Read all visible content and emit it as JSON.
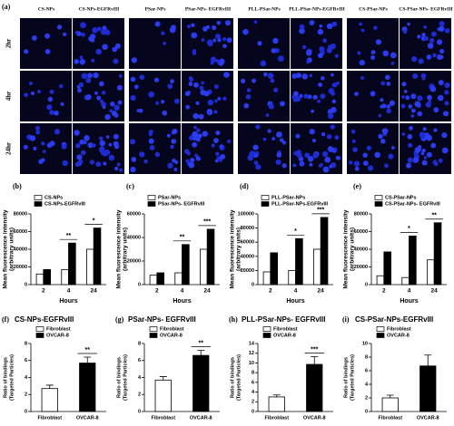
{
  "panel_a": {
    "label": "(a)",
    "columns": [
      "CS-NPs",
      "CS-NPs-EGFRvIII",
      "PSar-NPs",
      "PSar-NPs- EGFRvIII",
      "PLL-PSar-NPs",
      "PLL-PSar-NPs-EGFRvIII",
      "CS-PSar-NPs",
      "CS-PSar-NPs- EGFRvIII"
    ],
    "rows": [
      "2hr",
      "4hr",
      "24hr"
    ]
  },
  "chart_data": [
    {
      "type": "bar",
      "label": "(b)",
      "xlabel": "Hours",
      "ylabel": [
        "Mean fluorescence intensity",
        "(arbitrary units)"
      ],
      "categories": [
        "2",
        "4",
        "24"
      ],
      "series": [
        {
          "name": "CS-NPs",
          "color": "#ffffff",
          "values": [
            12000,
            17000,
            40000
          ]
        },
        {
          "name": "CS-NPs-EGFRvIII",
          "color": "#000000",
          "values": [
            17000,
            47000,
            64000
          ]
        }
      ],
      "ylim": [
        0,
        80000
      ],
      "yticks": [
        0,
        20000,
        40000,
        60000,
        80000
      ],
      "annotations": [
        {
          "x": "4",
          "text": "**"
        },
        {
          "x": "24",
          "text": "*"
        }
      ]
    },
    {
      "type": "bar",
      "label": "(c)",
      "xlabel": "Hours",
      "ylabel": [
        "Mean fluorescence intensity",
        "(arbitrary units)"
      ],
      "categories": [
        "2",
        "4",
        "24"
      ],
      "series": [
        {
          "name": "PSar-NPs",
          "color": "#ffffff",
          "values": [
            8000,
            10000,
            30000
          ]
        },
        {
          "name": "PSar-NPs- EGFRvIII",
          "color": "#000000",
          "values": [
            10000,
            34000,
            47000
          ]
        }
      ],
      "ylim": [
        0,
        60000
      ],
      "yticks": [
        0,
        20000,
        40000,
        60000
      ],
      "annotations": [
        {
          "x": "4",
          "text": "**"
        },
        {
          "x": "24",
          "text": "***"
        }
      ]
    },
    {
      "type": "bar",
      "label": "(d)",
      "xlabel": "Hours",
      "ylabel": [
        "Mean fluorescence intensity",
        "(arbitrary units)"
      ],
      "categories": [
        "2",
        "4",
        "24"
      ],
      "series": [
        {
          "name": "PLL-PSar-NPs",
          "color": "#ffffff",
          "values": [
            18000,
            20000,
            50000
          ]
        },
        {
          "name": "PLL-PSar-NPs-EGFRvIII",
          "color": "#000000",
          "values": [
            45000,
            65000,
            95000
          ]
        }
      ],
      "ylim": [
        0,
        100000
      ],
      "yticks": [
        0,
        20000,
        40000,
        60000,
        80000,
        100000
      ],
      "annotations": [
        {
          "x": "4",
          "text": "*"
        },
        {
          "x": "24",
          "text": "***"
        }
      ]
    },
    {
      "type": "bar",
      "label": "(e)",
      "xlabel": "Hours",
      "ylabel": [
        "Mean fluorescence intensity",
        "(arbitrary units)"
      ],
      "categories": [
        "2",
        "4",
        "24"
      ],
      "series": [
        {
          "name": "CS-PSar-NPs",
          "color": "#ffffff",
          "values": [
            10000,
            8000,
            28000
          ]
        },
        {
          "name": "CS-PSar-NPs- EGFRvIII",
          "color": "#000000",
          "values": [
            37000,
            55000,
            70000
          ]
        }
      ],
      "ylim": [
        0,
        80000
      ],
      "yticks": [
        0,
        20000,
        40000,
        60000,
        80000
      ],
      "annotations": [
        {
          "x": "4",
          "text": "*"
        },
        {
          "x": "24",
          "text": "**"
        }
      ]
    },
    {
      "type": "bar",
      "label": "(f)",
      "title": "CS-NPs-EGFRvIII",
      "ylabel": [
        "Ratio of bindings",
        "(Targeted Particles)"
      ],
      "categories": [
        "Fibroblast",
        "OVCAR-8"
      ],
      "series": [
        {
          "name": "Fibroblast",
          "color": "#ffffff",
          "values": [
            2.7,
            null
          ],
          "errors": [
            0.4,
            null
          ]
        },
        {
          "name": "OVCAR-8",
          "color": "#000000",
          "values": [
            null,
            5.7
          ],
          "errors": [
            null,
            0.7
          ]
        }
      ],
      "ylim": [
        0,
        8
      ],
      "yticks": [
        0,
        2,
        4,
        6,
        8
      ],
      "annotations": [
        {
          "x": "OVCAR-8",
          "text": "**"
        }
      ]
    },
    {
      "type": "bar",
      "label": "(g)",
      "title": "PSar-NPs- EGFRvIII",
      "ylabel": [
        "Ratio of bindings",
        "(Targeted Particles)"
      ],
      "categories": [
        "Fibroblast",
        "OVCAR-8"
      ],
      "series": [
        {
          "name": "Fibroblast",
          "color": "#ffffff",
          "values": [
            3.7,
            null
          ],
          "errors": [
            0.4,
            null
          ]
        },
        {
          "name": "OVCAR-8",
          "color": "#000000",
          "values": [
            null,
            6.6
          ],
          "errors": [
            null,
            0.6
          ]
        }
      ],
      "ylim": [
        0,
        8
      ],
      "yticks": [
        0,
        2,
        4,
        6,
        8
      ],
      "annotations": [
        {
          "x": "OVCAR-8",
          "text": "**"
        }
      ]
    },
    {
      "type": "bar",
      "label": "(h)",
      "title": "PLL-PSar-NPs- EGFRvIII",
      "ylabel": [
        "Ratio of bindings",
        "(Targeted Particles)"
      ],
      "categories": [
        "Fibroblast",
        "OVCAR-8"
      ],
      "series": [
        {
          "name": "Fibroblast",
          "color": "#ffffff",
          "values": [
            3.0,
            null
          ],
          "errors": [
            0.4,
            null
          ]
        },
        {
          "name": "OVCAR-8",
          "color": "#000000",
          "values": [
            null,
            9.7
          ],
          "errors": [
            null,
            1.6
          ]
        }
      ],
      "ylim": [
        0,
        14
      ],
      "yticks": [
        0,
        2,
        4,
        6,
        8,
        10,
        12,
        14
      ],
      "annotations": [
        {
          "x": "OVCAR-8",
          "text": "***"
        }
      ]
    },
    {
      "type": "bar",
      "label": "(i)",
      "title": "CS-PSar-NPs-EGFRvIII",
      "ylabel": [
        "Ratio of bindings",
        "(Targeted Particles)"
      ],
      "categories": [
        "Fibroblast",
        "OVCAR-8"
      ],
      "series": [
        {
          "name": "Fibroblast",
          "color": "#ffffff",
          "values": [
            2.0,
            null
          ],
          "errors": [
            0.4,
            null
          ]
        },
        {
          "name": "OVCAR-8",
          "color": "#000000",
          "values": [
            null,
            6.7
          ],
          "errors": [
            null,
            1.6
          ]
        }
      ],
      "ylim": [
        0,
        10
      ],
      "yticks": [
        0,
        2,
        4,
        6,
        8,
        10
      ],
      "annotations": []
    }
  ]
}
